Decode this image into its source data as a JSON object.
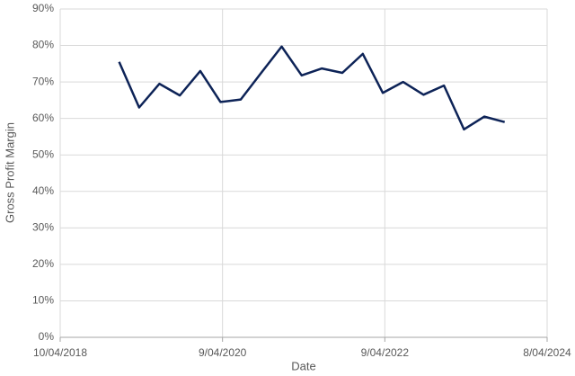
{
  "chart_data": {
    "type": "line",
    "x_label": "Date",
    "y_label": "Gross Profit Margin",
    "x": [
      "31/12/2018",
      "31/03/2019",
      "30/06/2019",
      "30/09/2019",
      "31/12/2019",
      "31/03/2020",
      "30/06/2020",
      "30/09/2020",
      "31/12/2020",
      "31/03/2021",
      "30/06/2021",
      "30/09/2021",
      "31/12/2021",
      "31/03/2022",
      "30/06/2022",
      "30/09/2022",
      "31/12/2022",
      "31/03/2023",
      "30/06/2023",
      "30/09/2023"
    ],
    "series": [
      {
        "name": "Gross Profit Margin",
        "color": "#0d2357",
        "values": [
          75.5,
          63,
          69.5,
          66.3,
          73,
          64.5,
          65.2,
          72.5,
          79.7,
          71.8,
          73.7,
          72.5,
          77.7,
          67,
          70,
          66.5,
          69,
          57,
          60.5,
          59
        ]
      }
    ],
    "xlim": [
      "10/04/2018",
      "8/04/2024"
    ],
    "xticks": [
      "10/04/2018",
      "9/04/2020",
      "9/04/2022",
      "8/04/2024"
    ],
    "ylim": [
      0,
      90
    ],
    "yticks": [
      {
        "value": 0,
        "label": "0%"
      },
      {
        "value": 10,
        "label": "10%"
      },
      {
        "value": 20,
        "label": "20%"
      },
      {
        "value": 30,
        "label": "30%"
      },
      {
        "value": 40,
        "label": "40%"
      },
      {
        "value": 50,
        "label": "50%"
      },
      {
        "value": 60,
        "label": "60%"
      },
      {
        "value": 70,
        "label": "70%"
      },
      {
        "value": 80,
        "label": "80%"
      },
      {
        "value": 90,
        "label": "90%"
      }
    ],
    "grid": true
  }
}
